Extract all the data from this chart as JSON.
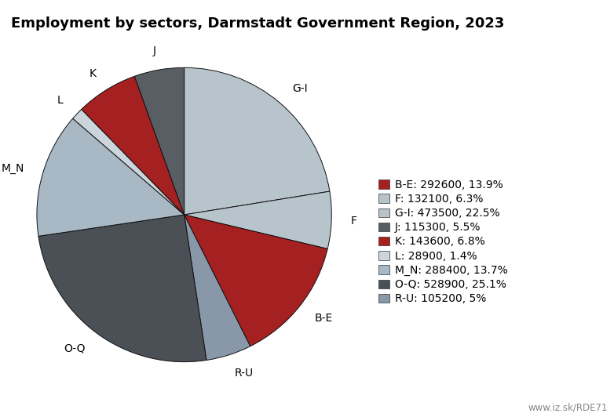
{
  "title": "Employment by sectors, Darmstadt Government Region, 2023",
  "sectors_ordered": [
    "G-I",
    "F",
    "B-E",
    "R-U",
    "O-Q",
    "M_N",
    "L",
    "K",
    "J"
  ],
  "values_ordered": [
    473500,
    132100,
    292600,
    105200,
    528900,
    288400,
    28900,
    143600,
    115300
  ],
  "colors_ordered": [
    "#b8c4cc",
    "#b8c4cc",
    "#a52020",
    "#8898a8",
    "#4a5056",
    "#a8b8c4",
    "#ccd4dc",
    "#a52020",
    "#585e64"
  ],
  "legend_sectors": [
    "B-E",
    "F",
    "G-I",
    "J",
    "K",
    "L",
    "M_N",
    "O-Q",
    "R-U"
  ],
  "legend_labels": [
    "B-E: 292600, 13.9%",
    "F: 132100, 6.3%",
    "G-I: 473500, 22.5%",
    "J: 115300, 5.5%",
    "K: 143600, 6.8%",
    "L: 28900, 1.4%",
    "M_N: 288400, 13.7%",
    "O-Q: 528900, 25.1%",
    "R-U: 105200, 5%"
  ],
  "legend_colors": [
    "#a52020",
    "#b8c4cc",
    "#b8c4cc",
    "#585e64",
    "#a52020",
    "#ccd4dc",
    "#a8b8c4",
    "#4a5056",
    "#8898a8"
  ],
  "watermark": "www.iz.sk/RDE71",
  "title_fontsize": 13,
  "label_fontsize": 10,
  "legend_fontsize": 10,
  "startangle": 90,
  "labeldistance": 1.13
}
